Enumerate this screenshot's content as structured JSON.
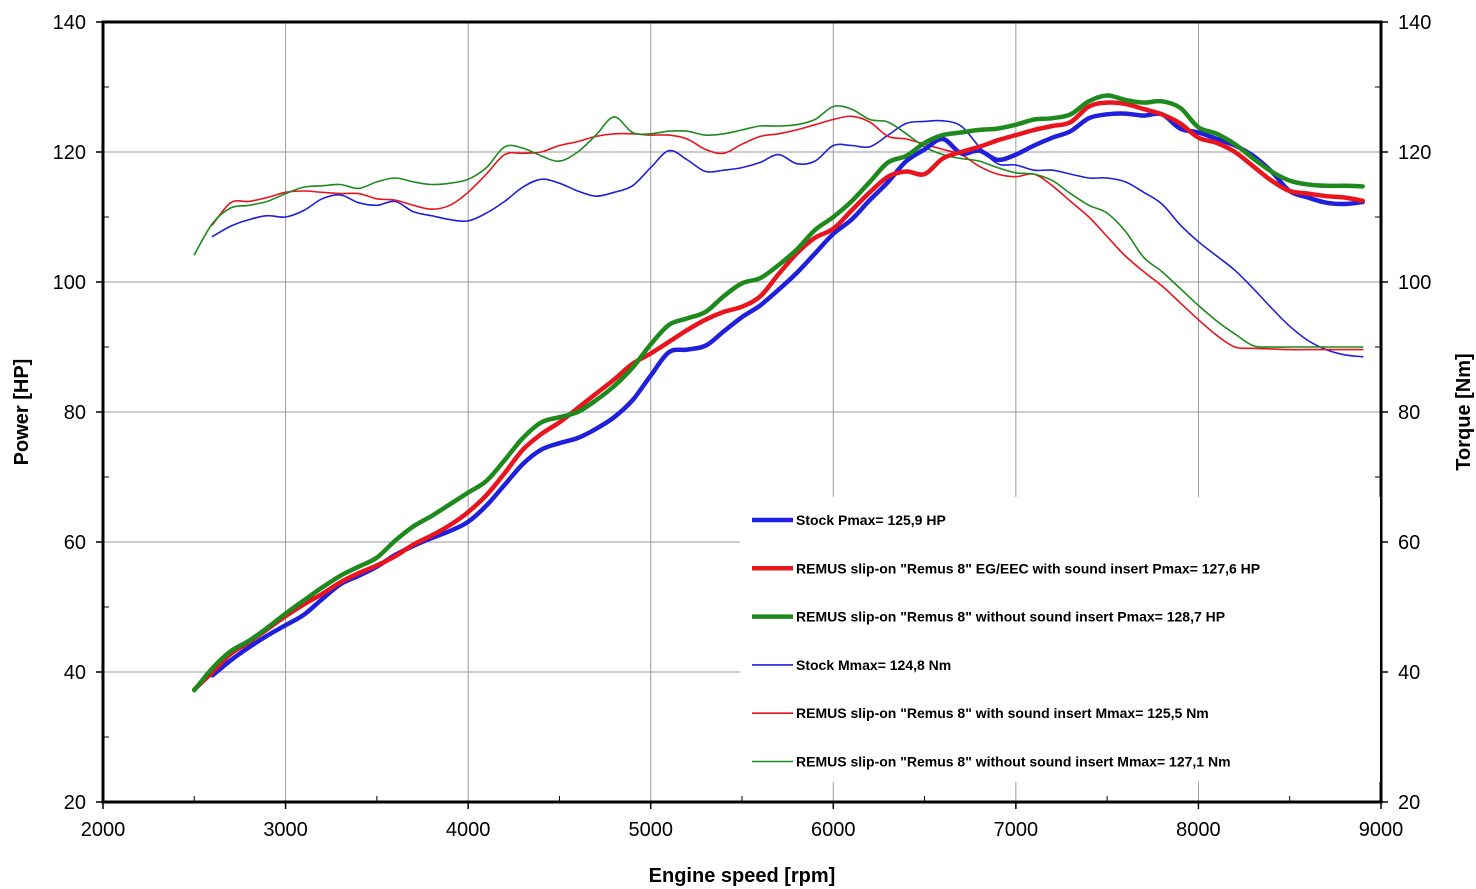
{
  "chart_data": {
    "type": "line",
    "title": "",
    "xlabel": "Engine speed [rpm]",
    "ylabel": "Power [HP]",
    "y2label": "Torque [Nm]",
    "xlim": [
      2000,
      9000
    ],
    "ylim": [
      20,
      140
    ],
    "y2lim": [
      20,
      140
    ],
    "xticks": [
      "2000",
      "3000",
      "4000",
      "5000",
      "6000",
      "7000",
      "8000",
      "9000"
    ],
    "yticks": [
      "20",
      "40",
      "60",
      "80",
      "100",
      "120",
      "140"
    ],
    "y2ticks": [
      "20",
      "40",
      "60",
      "80",
      "100",
      "120",
      "140"
    ],
    "grid": true,
    "legend_position": "bottom-right",
    "series": [
      {
        "name": "Stock Pmax= 125,9 HP",
        "axis": "left",
        "color": "#1f1fdc",
        "weight": "thick",
        "x": [
          2600,
          2700,
          2800,
          2900,
          3000,
          3100,
          3200,
          3300,
          3400,
          3500,
          3600,
          3700,
          3800,
          3900,
          4000,
          4100,
          4200,
          4300,
          4400,
          4500,
          4600,
          4700,
          4800,
          4900,
          5000,
          5100,
          5200,
          5300,
          5400,
          5500,
          5600,
          5700,
          5800,
          5900,
          6000,
          6100,
          6200,
          6300,
          6400,
          6500,
          6600,
          6700,
          6800,
          6900,
          7000,
          7100,
          7200,
          7300,
          7400,
          7500,
          7600,
          7700,
          7800,
          7900,
          8000,
          8100,
          8200,
          8300,
          8400,
          8500,
          8600,
          8700,
          8800,
          8900
        ],
        "values": [
          39.5,
          41.8,
          43.8,
          45.6,
          47.2,
          48.8,
          51.2,
          53.5,
          54.8,
          56.2,
          58.0,
          59.4,
          60.6,
          61.7,
          63.1,
          65.6,
          68.8,
          72.0,
          74.2,
          75.2,
          76.0,
          77.4,
          79.2,
          81.8,
          85.6,
          89.2,
          89.6,
          90.2,
          92.4,
          94.6,
          96.4,
          98.8,
          101.4,
          104.4,
          107.4,
          109.6,
          112.6,
          115.4,
          118.6,
          120.4,
          122.0,
          119.8,
          120.2,
          118.8,
          119.6,
          121.0,
          122.2,
          123.2,
          125.2,
          125.8,
          125.9,
          125.6,
          125.8,
          123.6,
          123.0,
          122.0,
          121.0,
          119.4,
          117.0,
          114.0,
          113.0,
          112.2,
          112.0,
          112.3
        ]
      },
      {
        "name": "REMUS slip-on \"Remus 8\" EG/EEC with sound insert Pmax=  127,6 HP",
        "axis": "left",
        "color": "#e8141e",
        "weight": "thick",
        "x": [
          2500,
          2600,
          2700,
          2800,
          2900,
          3000,
          3100,
          3200,
          3300,
          3400,
          3500,
          3600,
          3700,
          3800,
          3900,
          4000,
          4100,
          4200,
          4300,
          4400,
          4500,
          4600,
          4700,
          4800,
          4900,
          5000,
          5100,
          5200,
          5300,
          5400,
          5500,
          5600,
          5700,
          5800,
          5900,
          6000,
          6100,
          6200,
          6300,
          6400,
          6500,
          6600,
          6700,
          6800,
          6900,
          7000,
          7100,
          7200,
          7300,
          7400,
          7500,
          7600,
          7700,
          7800,
          7900,
          8000,
          8100,
          8200,
          8300,
          8400,
          8500,
          8600,
          8700,
          8800,
          8900
        ],
        "values": [
          37.3,
          40.0,
          42.8,
          44.6,
          46.6,
          48.6,
          50.4,
          52.0,
          53.8,
          55.2,
          56.4,
          57.8,
          59.6,
          61.0,
          62.6,
          64.6,
          67.2,
          70.6,
          74.2,
          76.6,
          78.4,
          80.6,
          82.8,
          85.0,
          87.4,
          89.0,
          90.8,
          92.6,
          94.2,
          95.4,
          96.2,
          97.8,
          101.2,
          104.4,
          106.8,
          108.2,
          111.0,
          113.8,
          116.2,
          117.0,
          116.6,
          119.0,
          120.0,
          120.8,
          121.8,
          122.6,
          123.4,
          124.0,
          124.6,
          127.0,
          127.6,
          127.4,
          126.6,
          125.8,
          124.4,
          122.2,
          121.4,
          120.0,
          117.8,
          115.6,
          114.0,
          113.6,
          113.2,
          113.0,
          112.5
        ]
      },
      {
        "name": "REMUS slip-on \"Remus 8\" without sound insert Pmax= 128,7 HP",
        "axis": "left",
        "color": "#1e8a1e",
        "weight": "thick",
        "x": [
          2500,
          2600,
          2700,
          2800,
          2900,
          3000,
          3100,
          3200,
          3300,
          3400,
          3500,
          3600,
          3700,
          3800,
          3900,
          4000,
          4100,
          4200,
          4300,
          4400,
          4500,
          4600,
          4700,
          4800,
          4900,
          5000,
          5100,
          5200,
          5300,
          5400,
          5500,
          5600,
          5700,
          5800,
          5900,
          6000,
          6100,
          6200,
          6300,
          6400,
          6500,
          6600,
          6700,
          6800,
          6900,
          7000,
          7100,
          7200,
          7300,
          7400,
          7500,
          7600,
          7700,
          7800,
          7900,
          8000,
          8100,
          8200,
          8300,
          8400,
          8500,
          8600,
          8700,
          8800,
          8900
        ],
        "values": [
          37.2,
          40.6,
          43.2,
          44.8,
          46.8,
          49.0,
          51.0,
          53.0,
          54.8,
          56.2,
          57.6,
          60.2,
          62.4,
          64.0,
          65.8,
          67.6,
          69.4,
          72.6,
          76.0,
          78.4,
          79.2,
          80.0,
          81.8,
          84.0,
          86.8,
          90.4,
          93.4,
          94.4,
          95.4,
          97.8,
          99.8,
          100.6,
          102.6,
          105.0,
          108.0,
          110.0,
          112.4,
          115.4,
          118.4,
          119.4,
          121.4,
          122.6,
          123.0,
          123.4,
          123.6,
          124.2,
          125.0,
          125.2,
          125.8,
          127.8,
          128.7,
          128.0,
          127.6,
          127.8,
          126.8,
          123.8,
          122.8,
          121.2,
          119.0,
          117.0,
          115.6,
          115.0,
          114.8,
          114.8,
          114.7
        ]
      },
      {
        "name": "Stock Mmax= 124,8 Nm",
        "axis": "right",
        "color": "#1f1fdc",
        "weight": "thin",
        "x": [
          2600,
          2700,
          2800,
          2900,
          3000,
          3100,
          3200,
          3300,
          3400,
          3500,
          3600,
          3700,
          3800,
          3900,
          4000,
          4100,
          4200,
          4300,
          4400,
          4500,
          4600,
          4700,
          4800,
          4900,
          5000,
          5100,
          5200,
          5300,
          5400,
          5500,
          5600,
          5700,
          5800,
          5900,
          6000,
          6100,
          6200,
          6300,
          6400,
          6500,
          6600,
          6700,
          6800,
          6900,
          7000,
          7100,
          7200,
          7300,
          7400,
          7500,
          7600,
          7700,
          7800,
          7900,
          8000,
          8100,
          8200,
          8300,
          8400,
          8500,
          8600,
          8700,
          8800,
          8900
        ],
        "values": [
          107.0,
          108.6,
          109.6,
          110.2,
          110.0,
          111.0,
          112.8,
          113.4,
          112.2,
          111.8,
          112.4,
          110.8,
          110.2,
          109.6,
          109.4,
          110.6,
          112.4,
          114.6,
          115.8,
          115.2,
          114.0,
          113.2,
          113.8,
          114.8,
          117.6,
          120.2,
          118.8,
          117.0,
          117.2,
          117.6,
          118.4,
          119.6,
          118.2,
          118.6,
          121.0,
          121.0,
          120.8,
          122.6,
          124.4,
          124.7,
          124.8,
          124.0,
          120.8,
          118.2,
          118.0,
          117.2,
          117.2,
          116.6,
          116.0,
          116.0,
          115.4,
          113.8,
          112.0,
          108.8,
          106.2,
          104.0,
          101.8,
          99.0,
          96.0,
          93.2,
          91.0,
          89.6,
          88.8,
          88.5
        ]
      },
      {
        "name": "REMUS slip-on \"Remus 8\"  with sound insert Mmax= 125,5 Nm",
        "axis": "right",
        "color": "#e8141e",
        "weight": "thin",
        "x": [
          2600,
          2700,
          2800,
          2900,
          3000,
          3100,
          3200,
          3300,
          3400,
          3500,
          3600,
          3700,
          3800,
          3900,
          4000,
          4100,
          4200,
          4300,
          4400,
          4500,
          4600,
          4700,
          4800,
          4900,
          5000,
          5100,
          5200,
          5300,
          5400,
          5500,
          5600,
          5700,
          5800,
          5900,
          6000,
          6100,
          6200,
          6300,
          6400,
          6500,
          6600,
          6700,
          6800,
          6900,
          7000,
          7100,
          7200,
          7300,
          7400,
          7500,
          7600,
          7700,
          7800,
          7900,
          8000,
          8100,
          8200,
          8300,
          8400,
          8500,
          8600,
          8700,
          8800,
          8900
        ],
        "values": [
          108.8,
          112.2,
          112.4,
          113.0,
          113.8,
          114.0,
          113.8,
          113.6,
          113.6,
          112.8,
          112.6,
          111.8,
          111.2,
          111.8,
          113.8,
          116.6,
          119.6,
          119.8,
          120.0,
          121.0,
          121.6,
          122.4,
          122.8,
          122.8,
          122.6,
          122.6,
          122.0,
          120.4,
          119.8,
          121.2,
          122.4,
          122.8,
          123.4,
          124.2,
          125.0,
          125.5,
          124.6,
          122.4,
          122.0,
          121.2,
          120.4,
          119.6,
          117.8,
          116.6,
          116.2,
          116.6,
          114.8,
          112.4,
          110.0,
          107.0,
          104.0,
          101.6,
          99.4,
          96.8,
          94.2,
          91.8,
          90.0,
          89.8,
          89.7,
          89.6,
          89.6,
          89.6,
          89.6,
          89.6
        ]
      },
      {
        "name": "REMUS slip-on \"Remus 8\" without sound insert Mmax= 127,1 Nm",
        "axis": "right",
        "color": "#1e8a1e",
        "weight": "thin",
        "x": [
          2500,
          2600,
          2700,
          2800,
          2900,
          3000,
          3100,
          3200,
          3300,
          3400,
          3500,
          3600,
          3700,
          3800,
          3900,
          4000,
          4100,
          4200,
          4300,
          4400,
          4500,
          4600,
          4700,
          4800,
          4900,
          5000,
          5100,
          5200,
          5300,
          5400,
          5500,
          5600,
          5700,
          5800,
          5900,
          6000,
          6100,
          6200,
          6300,
          6400,
          6500,
          6600,
          6700,
          6800,
          6900,
          7000,
          7100,
          7200,
          7300,
          7400,
          7500,
          7600,
          7700,
          7800,
          7900,
          8000,
          8100,
          8200,
          8300,
          8400,
          8500,
          8600,
          8700,
          8800,
          8900
        ],
        "values": [
          104.2,
          109.0,
          111.4,
          111.8,
          112.4,
          113.6,
          114.6,
          114.8,
          115.0,
          114.4,
          115.4,
          116.0,
          115.4,
          115.0,
          115.2,
          115.8,
          117.6,
          120.8,
          120.6,
          119.4,
          118.6,
          120.0,
          122.6,
          125.4,
          123.0,
          122.8,
          123.2,
          123.2,
          122.6,
          122.8,
          123.4,
          124.0,
          124.0,
          124.2,
          125.0,
          127.0,
          126.6,
          125.0,
          124.6,
          122.8,
          120.8,
          119.6,
          119.0,
          118.6,
          117.6,
          116.8,
          116.6,
          115.6,
          113.6,
          111.8,
          110.6,
          107.8,
          103.8,
          101.6,
          99.0,
          96.4,
          94.0,
          92.0,
          90.2,
          90.0,
          90.0,
          90.0,
          90.0,
          90.0,
          90.0
        ]
      }
    ]
  }
}
